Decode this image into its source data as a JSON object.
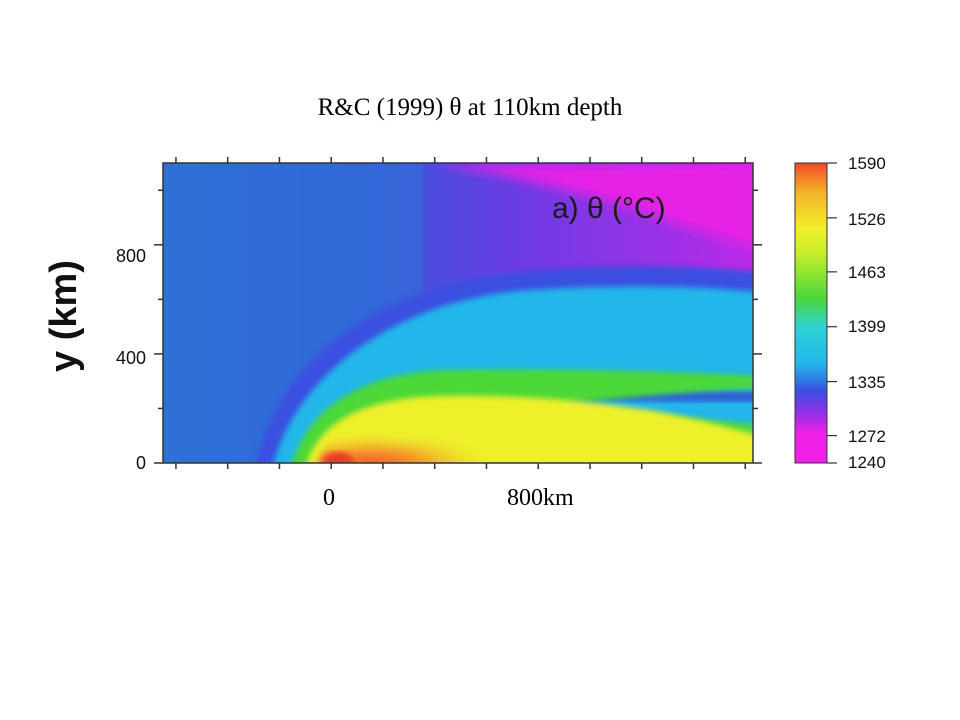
{
  "slide": {
    "title": "R&C (1999) θ at 110km depth"
  },
  "x_labels": {
    "origin": "0",
    "far": "800km"
  },
  "chart_data": {
    "type": "heatmap",
    "title": "",
    "panel_label": "a)  θ (°C)",
    "ylabel": "y (km)",
    "xlabel": "",
    "y_ticks": [
      "0",
      "400",
      "800"
    ],
    "ylim": [
      0,
      1100
    ],
    "x_annotations": [
      {
        "label": "0",
        "value": 0
      },
      {
        "label": "800km",
        "value": 800
      }
    ],
    "xlim": [
      -650,
      1630
    ],
    "colorbar": {
      "unit": "°C",
      "range": [
        1240,
        1590
      ],
      "tick_labels": [
        "1590",
        "1526",
        "1463",
        "1399",
        "1335",
        "1272",
        "1240"
      ],
      "tick_values": [
        1590,
        1526,
        1463,
        1399,
        1335,
        1272,
        1240
      ],
      "palette": [
        "#f020e8",
        "#9a2ee8",
        "#3a4fe0",
        "#23b6ea",
        "#4cd838",
        "#e8f028",
        "#f4b428",
        "#f24a2a"
      ]
    },
    "field_description": {
      "background": "cool blue (~1300°C) upstream, magenta (~1250°C) in upper right",
      "plume_head": "orange (~1560°C) near x≈0–300 km, y≈0–80 km",
      "tail": "yellow/green/cyan bands trailing downstream along y≈0–400 km"
    }
  }
}
